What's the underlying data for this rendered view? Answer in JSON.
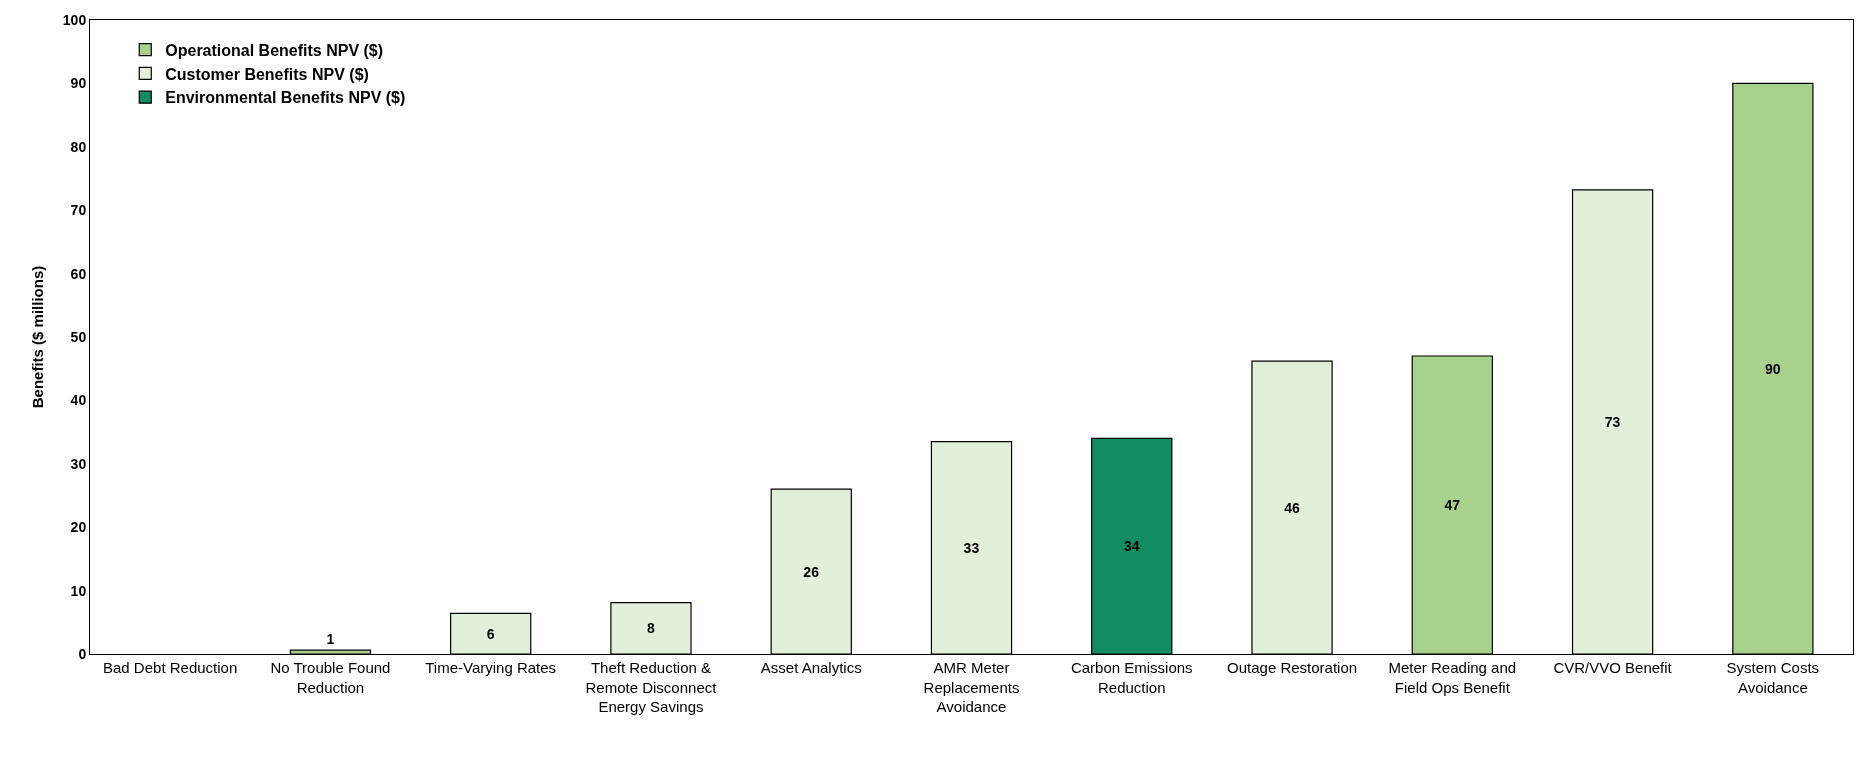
{
  "chart_data": {
    "type": "bar",
    "ylabel": "Benefits ($ millions)",
    "categories": [
      "Bad Debt Reduction",
      "No Trouble Found Reduction",
      "Time-Varying Rates",
      "Theft Reduction & Remote Disconnect Energy Savings",
      "Asset Analytics",
      "AMR Meter Replacements Avoidance",
      "Carbon Emissions Reduction",
      "Outage Restoration",
      "Meter Reading and Field Ops Benefit",
      "CVR/VVO Benefit",
      "System Costs Avoidance"
    ],
    "series": [
      {
        "name": "Operational Benefits NPV ($)",
        "color": "#a9d18e",
        "values": [
          null,
          0.6,
          null,
          null,
          null,
          null,
          null,
          null,
          47,
          null,
          90
        ],
        "value_labels": [
          null,
          "1",
          null,
          null,
          null,
          null,
          null,
          null,
          "47",
          null,
          "90"
        ]
      },
      {
        "name": "Customer Benefits NPV ($)",
        "color": "#e2efda",
        "values": [
          null,
          null,
          6.4,
          8.1,
          26,
          33.5,
          null,
          46.2,
          null,
          73.2,
          null
        ],
        "value_labels": [
          null,
          null,
          "6",
          "8",
          "26",
          "33",
          null,
          "46",
          null,
          "73",
          null
        ]
      },
      {
        "name": "Environmental Benefits NPV ($)",
        "color": "#118c63",
        "values": [
          null,
          null,
          null,
          null,
          null,
          null,
          34,
          null,
          null,
          null,
          null
        ],
        "value_labels": [
          null,
          null,
          null,
          null,
          null,
          null,
          "34",
          null,
          null,
          null,
          null
        ]
      }
    ],
    "ylim": [
      0,
      100
    ],
    "yticks": [
      0,
      10,
      20,
      30,
      40,
      50,
      60,
      70,
      80,
      90,
      100
    ],
    "grid": false,
    "legend": "top left"
  }
}
